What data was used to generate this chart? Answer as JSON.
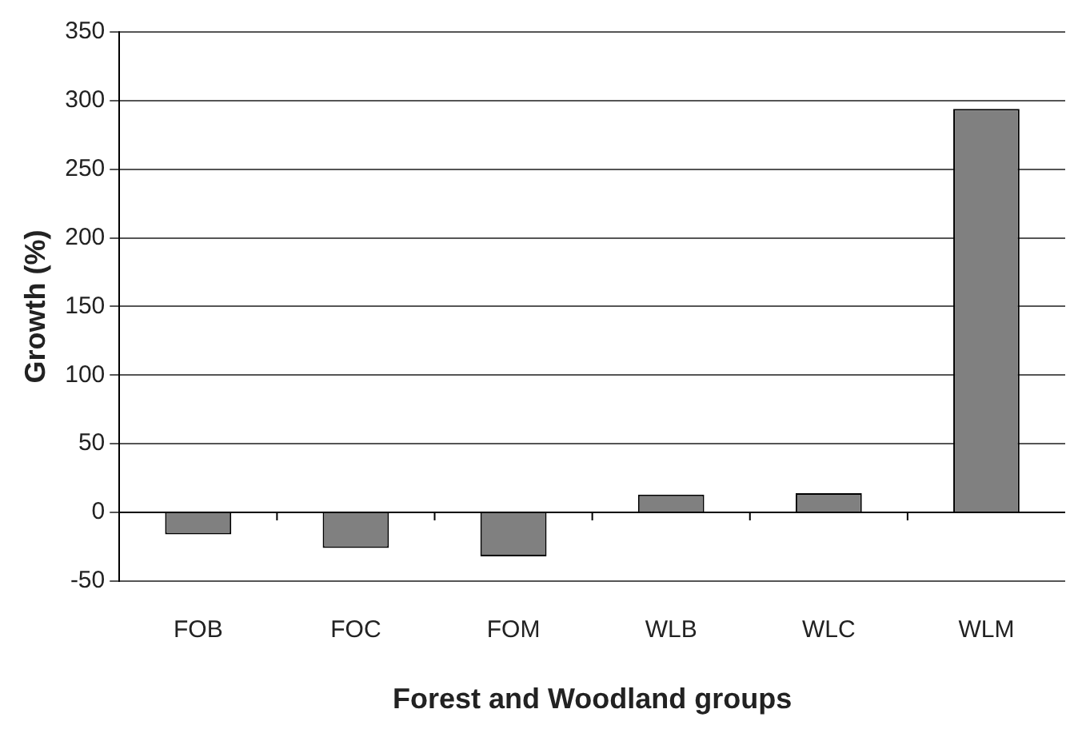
{
  "chart_data": {
    "type": "bar",
    "xlabel": "Forest and Woodland groups",
    "ylabel": "Growth (%)",
    "categories": [
      "FOB",
      "FOC",
      "FOM",
      "WLB",
      "WLC",
      "WLM"
    ],
    "values": [
      -16,
      -26,
      -32,
      13,
      14,
      294
    ],
    "color": "#808080",
    "ylim": [
      -50,
      350
    ],
    "yticks": [
      -50,
      0,
      50,
      100,
      150,
      200,
      250,
      300,
      350
    ],
    "grid": "y",
    "legend": false
  }
}
